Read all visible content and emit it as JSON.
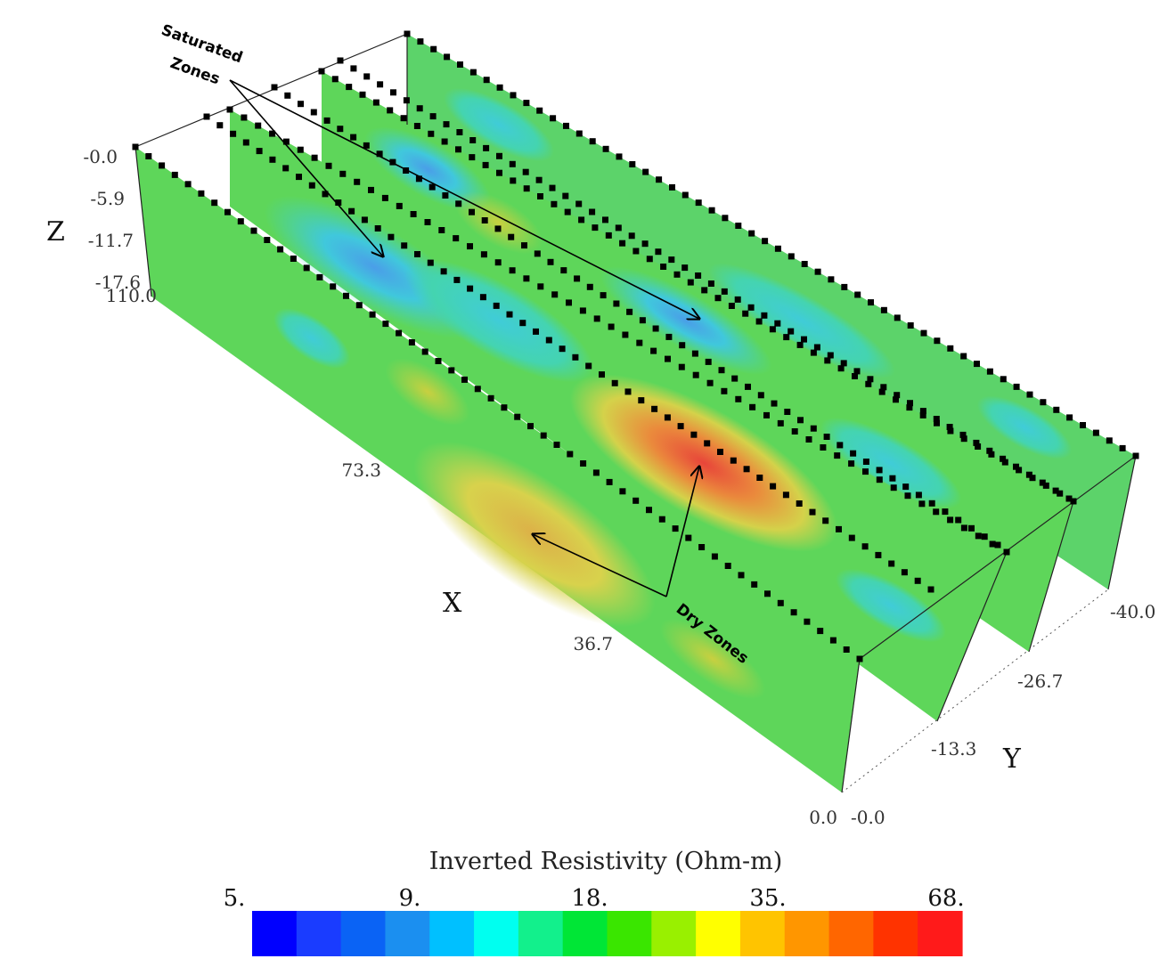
{
  "axes": {
    "z": {
      "label": "Z",
      "ticks": [
        "-0.0",
        "-5.9",
        "-11.7",
        "-17.6"
      ]
    },
    "x": {
      "label": "X",
      "ticks": [
        "110.0",
        "73.3",
        "36.7",
        "0.0"
      ]
    },
    "y": {
      "label": "Y",
      "ticks": [
        "-0.0",
        "-13.3",
        "-26.7",
        "-40.0"
      ]
    }
  },
  "annotations": {
    "saturated_line1": "Saturated",
    "saturated_line2": "Zones",
    "dry": "Dry Zones"
  },
  "legend": {
    "title": "Inverted Resistivity (Ohm-m)",
    "ticks": [
      "5.",
      "9.",
      "18.",
      "35.",
      "68."
    ],
    "colors": [
      "#0000ff",
      "#1a3cff",
      "#0a63f5",
      "#1b8ff0",
      "#00c0ff",
      "#00fff0",
      "#12f08c",
      "#00e636",
      "#3ae600",
      "#99f000",
      "#ffff00",
      "#ffc400",
      "#ff9600",
      "#ff6600",
      "#ff3300",
      "#ff1a1a"
    ]
  },
  "colors": {
    "panel_base": "#5ed65a",
    "saturated": "#3ecfd8",
    "dry": "#e07a3a"
  }
}
